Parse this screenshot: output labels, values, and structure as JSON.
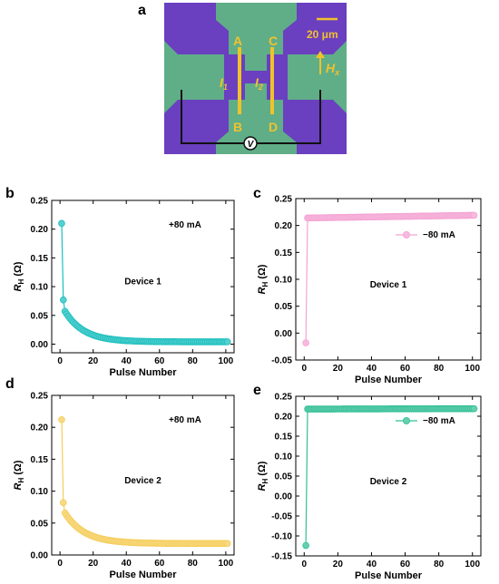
{
  "micrograph": {
    "panel_label": "a",
    "scale_bar_label": "20 μm",
    "electrode_labels": [
      "A",
      "B",
      "C",
      "D"
    ],
    "current_labels": [
      "I1",
      "I2"
    ],
    "field_label": "Hx",
    "voltmeter_label": "V",
    "colors": {
      "substrate": "#5fae88",
      "metal": "#6a3fc0",
      "channel": "#f0c22b",
      "wire": "#111111"
    }
  },
  "chart_data": [
    {
      "panel_label": "b",
      "type": "scatter",
      "xlabel": "Pulse Number",
      "ylabel": "RH (Ω)",
      "annotation": "+80 mA",
      "device_label": "Device 1",
      "xlim": [
        -5,
        105
      ],
      "ylim": [
        -0.015,
        0.25
      ],
      "xticks": [
        0,
        20,
        40,
        60,
        80,
        100
      ],
      "yticks": [
        0.0,
        0.05,
        0.1,
        0.15,
        0.2,
        0.25
      ],
      "ytick_decimals": 2,
      "color": "#1cbfbf",
      "curve": {
        "form": "decay",
        "points": 101,
        "first": 0.21,
        "second": 0.077,
        "a": 0.058,
        "k": 0.088,
        "c": 0.004
      }
    },
    {
      "panel_label": "c",
      "type": "scatter",
      "xlabel": "Pulse Number",
      "ylabel": "RH (Ω)",
      "legend": "−80 mA",
      "legend_position": "upper-right",
      "device_label": "Device 1",
      "xlim": [
        -5,
        105
      ],
      "ylim": [
        -0.05,
        0.25
      ],
      "xticks": [
        0,
        20,
        40,
        60,
        80,
        100
      ],
      "yticks": [
        -0.05,
        0.0,
        0.05,
        0.1,
        0.15,
        0.2,
        0.25
      ],
      "ytick_decimals": 2,
      "color": "#f4a3d3",
      "curve": {
        "form": "step",
        "points": 101,
        "first": -0.018,
        "start": 0.214,
        "end": 0.219
      }
    },
    {
      "panel_label": "d",
      "type": "scatter",
      "xlabel": "Pulse Number",
      "ylabel": "RH (Ω)",
      "annotation": "+80 mA",
      "device_label": "Device 2",
      "xlim": [
        -5,
        105
      ],
      "ylim": [
        0.0,
        0.25
      ],
      "xticks": [
        0,
        20,
        40,
        60,
        80,
        100
      ],
      "yticks": [
        0.0,
        0.05,
        0.1,
        0.15,
        0.2,
        0.25
      ],
      "ytick_decimals": 2,
      "color": "#f5cd5a",
      "curve": {
        "form": "decay",
        "points": 101,
        "first": 0.212,
        "second": 0.082,
        "a": 0.052,
        "k": 0.085,
        "c": 0.018
      }
    },
    {
      "panel_label": "e",
      "type": "scatter",
      "xlabel": "Pulse Number",
      "ylabel": "RH (Ω)",
      "legend": "−80 mA",
      "legend_position": "upper-right",
      "device_label": "Device 2",
      "xlim": [
        -5,
        105
      ],
      "ylim": [
        -0.15,
        0.25
      ],
      "xticks": [
        0,
        20,
        40,
        60,
        80,
        100
      ],
      "yticks": [
        -0.15,
        -0.1,
        -0.05,
        0.0,
        0.05,
        0.1,
        0.15,
        0.2,
        0.25
      ],
      "ytick_decimals": 2,
      "color": "#33bf96",
      "curve": {
        "form": "step",
        "points": 101,
        "first": -0.124,
        "start": 0.218,
        "end": 0.219
      }
    }
  ]
}
